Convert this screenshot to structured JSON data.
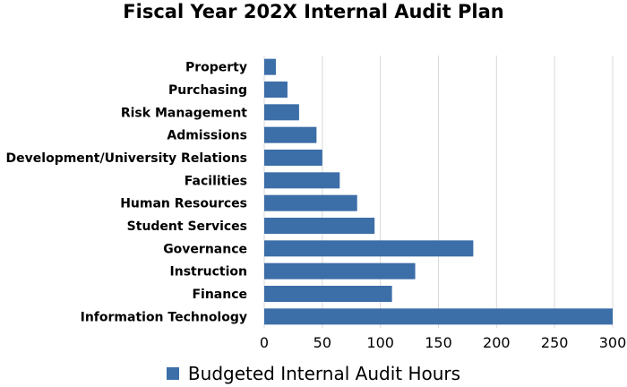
{
  "chart_data": {
    "type": "bar",
    "orientation": "horizontal",
    "title": "Fiscal Year 202X Internal Audit Plan",
    "xlabel": "",
    "ylabel": "",
    "categories": [
      "Property",
      "Purchasing",
      "Risk Management",
      "Admissions",
      "Development/University Relations",
      "Facilities",
      "Human Resources",
      "Student Services",
      "Governance",
      "Instruction",
      "Finance",
      "Information Technology"
    ],
    "series": [
      {
        "name": "Budgeted Internal Audit Hours",
        "values": [
          10,
          20,
          30,
          45,
          50,
          65,
          80,
          95,
          180,
          130,
          110,
          300
        ],
        "color": "#3c6ea8"
      }
    ],
    "xlim": [
      0,
      300
    ],
    "xticks": [
      0,
      50,
      100,
      150,
      200,
      250,
      300
    ],
    "grid": "vertical",
    "legend_position": "bottom"
  }
}
